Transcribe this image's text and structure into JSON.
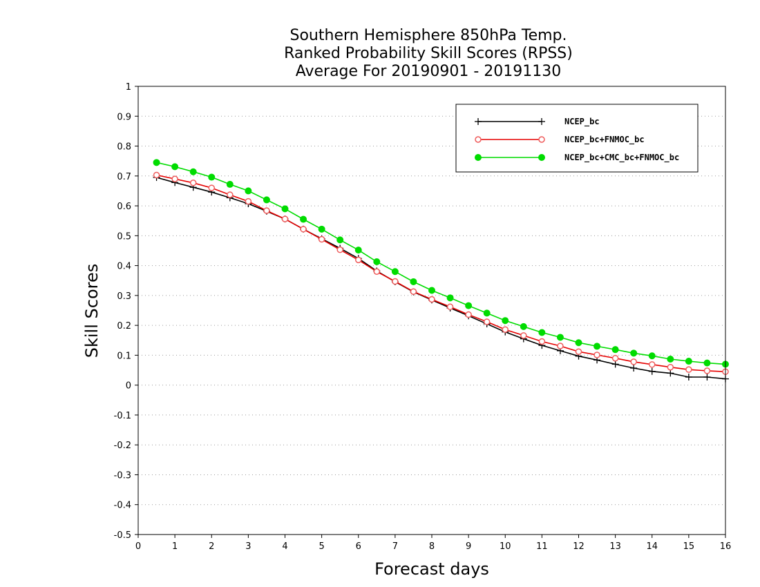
{
  "chart_data": {
    "type": "line",
    "title": [
      "Southern Hemisphere 850hPa Temp.",
      "Ranked Probability Skill Scores (RPSS)",
      "Average For 20190901 - 20191130"
    ],
    "xlabel": "Forecast days",
    "ylabel": "Skill Scores",
    "xlim": [
      0,
      16
    ],
    "ylim": [
      -0.5,
      1
    ],
    "x_ticks": [
      "0",
      "1",
      "2",
      "3",
      "4",
      "5",
      "6",
      "7",
      "8",
      "9",
      "10",
      "11",
      "12",
      "13",
      "14",
      "15",
      "16"
    ],
    "y_ticks": [
      "1",
      "0.9",
      "0.8",
      "0.7",
      "0.6",
      "0.5",
      "0.4",
      "0.3",
      "0.2",
      "0.1",
      "0",
      "-0.1",
      "-0.2",
      "-0.3",
      "-0.4",
      "-0.5"
    ],
    "grid": "horizontal dotted",
    "legend_position": "top-right",
    "x": [
      0.5,
      1,
      1.5,
      2,
      2.5,
      3,
      3.5,
      4,
      4.5,
      5,
      5.5,
      6,
      6.5,
      7,
      7.5,
      8,
      8.5,
      9,
      9.5,
      10,
      10.5,
      11,
      11.5,
      12,
      12.5,
      13,
      13.5,
      14,
      14.5,
      15,
      15.5,
      16
    ],
    "series": [
      {
        "name": "NCEP_bc",
        "color": "#000000",
        "marker": "plus",
        "values": [
          0.695,
          0.678,
          0.662,
          0.646,
          0.627,
          0.607,
          0.582,
          0.556,
          0.522,
          0.49,
          0.458,
          0.424,
          0.382,
          0.346,
          0.312,
          0.285,
          0.258,
          0.232,
          0.205,
          0.178,
          0.155,
          0.133,
          0.115,
          0.097,
          0.084,
          0.07,
          0.057,
          0.046,
          0.04,
          0.027,
          0.027,
          0.021
        ]
      },
      {
        "name": "NCEP_bc+FNMOC_bc",
        "color": "#e60000",
        "marker": "open-circle",
        "values": [
          0.703,
          0.69,
          0.677,
          0.66,
          0.637,
          0.615,
          0.584,
          0.556,
          0.522,
          0.488,
          0.453,
          0.419,
          0.38,
          0.347,
          0.313,
          0.287,
          0.262,
          0.236,
          0.212,
          0.186,
          0.166,
          0.146,
          0.131,
          0.112,
          0.101,
          0.09,
          0.078,
          0.069,
          0.06,
          0.052,
          0.048,
          0.045
        ]
      },
      {
        "name": "NCEP_bc+CMC_bc+FNMOC_bc",
        "color": "#00dc00",
        "marker": "filled-circle",
        "values": [
          0.745,
          0.731,
          0.714,
          0.696,
          0.672,
          0.65,
          0.62,
          0.59,
          0.555,
          0.522,
          0.486,
          0.452,
          0.413,
          0.38,
          0.346,
          0.317,
          0.292,
          0.266,
          0.241,
          0.216,
          0.196,
          0.176,
          0.16,
          0.142,
          0.13,
          0.119,
          0.107,
          0.098,
          0.087,
          0.08,
          0.074,
          0.07
        ]
      }
    ]
  }
}
